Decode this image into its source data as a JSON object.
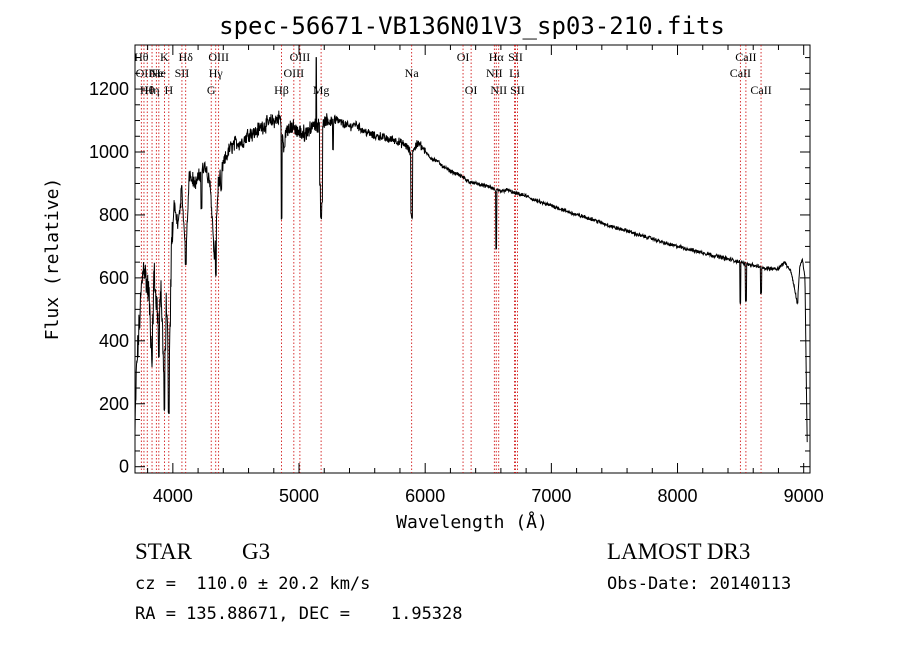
{
  "chart_data": {
    "type": "line",
    "title": "spec-56671-VB136N01V3_sp03-210.fits",
    "xlabel": "Wavelength (Å)",
    "ylabel": "Flux (relative)",
    "xlim": [
      3700,
      9050
    ],
    "ylim": [
      -20,
      1340
    ],
    "xticks": [
      4000,
      5000,
      6000,
      7000,
      8000,
      9000
    ],
    "yticks": [
      0,
      200,
      400,
      600,
      800,
      1000,
      1200
    ],
    "xtick_labels": [
      "4000",
      "5000",
      "6000",
      "7000",
      "8000",
      "9000"
    ],
    "ytick_labels": [
      "0",
      "200",
      "400",
      "600",
      "800",
      "1000",
      "1200"
    ],
    "grid": false,
    "line_color": "#000000",
    "marker_color": "#cc0000",
    "spectrum_anchors": [
      [
        3700,
        100
      ],
      [
        3712,
        310
      ],
      [
        3730,
        420
      ],
      [
        3750,
        560
      ],
      [
        3770,
        650
      ],
      [
        3790,
        590
      ],
      [
        3810,
        550
      ],
      [
        3835,
        340
      ],
      [
        3850,
        620
      ],
      [
        3870,
        520
      ],
      [
        3889,
        430
      ],
      [
        3905,
        580
      ],
      [
        3933,
        250
      ],
      [
        3950,
        540
      ],
      [
        3968,
        200
      ],
      [
        3990,
        700
      ],
      [
        4010,
        840
      ],
      [
        4040,
        760
      ],
      [
        4070,
        880
      ],
      [
        4102,
        680
      ],
      [
        4130,
        930
      ],
      [
        4180,
        900
      ],
      [
        4220,
        930
      ],
      [
        4260,
        960
      ],
      [
        4300,
        880
      ],
      [
        4330,
        650
      ],
      [
        4360,
        900
      ],
      [
        4400,
        960
      ],
      [
        4450,
        1010
      ],
      [
        4500,
        1030
      ],
      [
        4550,
        1030
      ],
      [
        4600,
        1060
      ],
      [
        4650,
        1060
      ],
      [
        4700,
        1080
      ],
      [
        4750,
        1090
      ],
      [
        4800,
        1100
      ],
      [
        4850,
        1110
      ],
      [
        4880,
        1010
      ],
      [
        4900,
        1070
      ],
      [
        4950,
        1080
      ],
      [
        5000,
        1060
      ],
      [
        5050,
        1060
      ],
      [
        5100,
        1080
      ],
      [
        5150,
        1090
      ],
      [
        5200,
        1090
      ],
      [
        5250,
        1100
      ],
      [
        5300,
        1100
      ],
      [
        5350,
        1090
      ],
      [
        5400,
        1080
      ],
      [
        5450,
        1090
      ],
      [
        5500,
        1070
      ],
      [
        5550,
        1060
      ],
      [
        5600,
        1050
      ],
      [
        5650,
        1050
      ],
      [
        5700,
        1040
      ],
      [
        5750,
        1040
      ],
      [
        5800,
        1030
      ],
      [
        5850,
        1020
      ],
      [
        5880,
        1000
      ],
      [
        5910,
        1010
      ],
      [
        5950,
        1030
      ],
      [
        6000,
        1000
      ],
      [
        6050,
        980
      ],
      [
        6100,
        970
      ],
      [
        6150,
        950
      ],
      [
        6200,
        940
      ],
      [
        6250,
        930
      ],
      [
        6300,
        920
      ],
      [
        6350,
        905
      ],
      [
        6400,
        900
      ],
      [
        6450,
        895
      ],
      [
        6500,
        890
      ],
      [
        6550,
        880
      ],
      [
        6600,
        875
      ],
      [
        6650,
        880
      ],
      [
        6700,
        870
      ],
      [
        6750,
        865
      ],
      [
        6800,
        860
      ],
      [
        6850,
        850
      ],
      [
        6900,
        842
      ],
      [
        6950,
        835
      ],
      [
        7000,
        830
      ],
      [
        7100,
        815
      ],
      [
        7200,
        800
      ],
      [
        7300,
        790
      ],
      [
        7400,
        775
      ],
      [
        7500,
        760
      ],
      [
        7600,
        750
      ],
      [
        7700,
        735
      ],
      [
        7800,
        725
      ],
      [
        7900,
        710
      ],
      [
        8000,
        700
      ],
      [
        8100,
        690
      ],
      [
        8200,
        680
      ],
      [
        8300,
        670
      ],
      [
        8400,
        660
      ],
      [
        8500,
        650
      ],
      [
        8600,
        640
      ],
      [
        8700,
        630
      ],
      [
        8800,
        630
      ],
      [
        8850,
        650
      ],
      [
        8900,
        620
      ],
      [
        8930,
        560
      ],
      [
        8950,
        520
      ],
      [
        8970,
        640
      ],
      [
        8990,
        660
      ],
      [
        9010,
        600
      ],
      [
        9020,
        300
      ],
      [
        9030,
        20
      ]
    ],
    "spectrum_dips": [
      [
        3835,
        340
      ],
      [
        3889,
        350
      ],
      [
        3933,
        180
      ],
      [
        3968,
        170
      ],
      [
        4102,
        640
      ],
      [
        4227,
        820
      ],
      [
        4340,
        610
      ],
      [
        4383,
        880
      ],
      [
        4861,
        790
      ],
      [
        5167,
        900
      ],
      [
        5175,
        790
      ],
      [
        5183,
        840
      ],
      [
        5270,
        1010
      ],
      [
        5890,
        800
      ],
      [
        5896,
        790
      ],
      [
        6563,
        690
      ],
      [
        8498,
        520
      ],
      [
        8542,
        530
      ],
      [
        8662,
        550
      ],
      [
        8950,
        520
      ]
    ],
    "spike": [
      5137,
      1300
    ],
    "lines": [
      {
        "wl": 3750,
        "label": "Hθ",
        "row": 1
      },
      {
        "wl": 3771,
        "label": "OII",
        "row": 2
      },
      {
        "wl": 3797,
        "label": "Hθ",
        "row": 3
      },
      {
        "wl": 3835,
        "label": "Hη",
        "row": 3
      },
      {
        "wl": 3869,
        "label": "Ne",
        "row": 2
      },
      {
        "wl": 3889,
        "label": "He",
        "row": 2
      },
      {
        "wl": 3933,
        "label": "K",
        "row": 1
      },
      {
        "wl": 3968,
        "label": "H",
        "row": 3
      },
      {
        "wl": 4072,
        "label": "SII",
        "row": 2
      },
      {
        "wl": 4102,
        "label": "Hδ",
        "row": 1
      },
      {
        "wl": 4304,
        "label": "G",
        "row": 3
      },
      {
        "wl": 4340,
        "label": "Hγ",
        "row": 2
      },
      {
        "wl": 4363,
        "label": "OIII",
        "row": 1
      },
      {
        "wl": 4861,
        "label": "Hβ",
        "row": 3
      },
      {
        "wl": 4959,
        "label": "OIII",
        "row": 2
      },
      {
        "wl": 5007,
        "label": "OIII",
        "row": 1
      },
      {
        "wl": 5175,
        "label": "Mg",
        "row": 3
      },
      {
        "wl": 5893,
        "label": "Na",
        "row": 2
      },
      {
        "wl": 6300,
        "label": "OI",
        "row": 1
      },
      {
        "wl": 6364,
        "label": "OI",
        "row": 3
      },
      {
        "wl": 6548,
        "label": "NII",
        "row": 2
      },
      {
        "wl": 6563,
        "label": "Hα",
        "row": 1
      },
      {
        "wl": 6583,
        "label": "NII",
        "row": 3
      },
      {
        "wl": 6708,
        "label": "Li",
        "row": 2
      },
      {
        "wl": 6716,
        "label": "SII",
        "row": 1
      },
      {
        "wl": 6731,
        "label": "SII",
        "row": 3
      },
      {
        "wl": 8498,
        "label": "CaII",
        "row": 2
      },
      {
        "wl": 8542,
        "label": "CaII",
        "row": 1
      },
      {
        "wl": 8662,
        "label": "CaII",
        "row": 3
      }
    ]
  },
  "info": {
    "class": "STAR",
    "subclass": "G3",
    "redshift": "cz =  110.0 ± 20.2 km/s",
    "coords": "RA = 135.88671, DEC =    1.95328",
    "survey": "LAMOST DR3",
    "obs_date": "Obs-Date: 20140113"
  }
}
